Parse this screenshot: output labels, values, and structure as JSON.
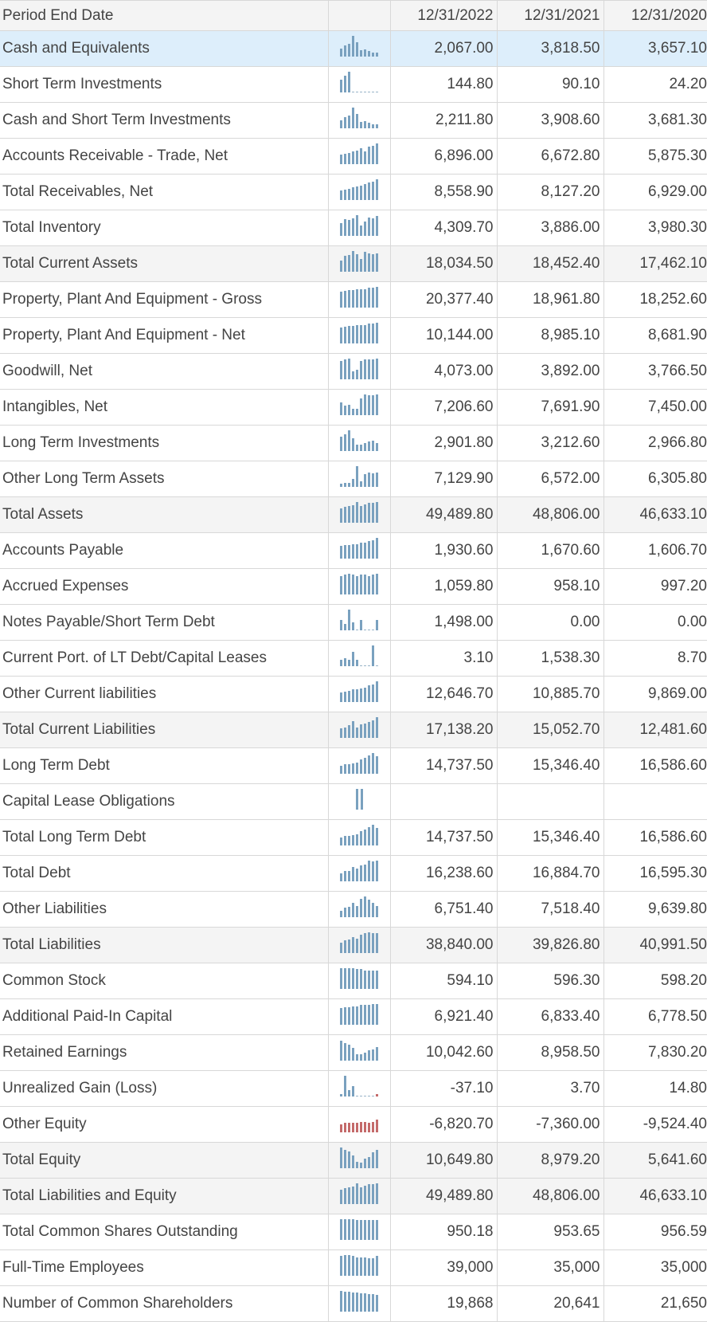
{
  "header": {
    "label": "Period End Date",
    "periods": [
      "12/31/2022",
      "12/31/2021",
      "12/31/2020"
    ]
  },
  "colors": {
    "bar_positive": "#7aa1bf",
    "bar_negative": "#c46a6a",
    "selected_row": "#ddeefb",
    "total_row": "#f4f4f4"
  },
  "rows": [
    {
      "label": "Cash and Equivalents",
      "values": [
        "2,067.00",
        "3,818.50",
        "3,657.10"
      ],
      "spark": [
        40,
        55,
        60,
        100,
        70,
        30,
        35,
        25,
        20,
        20
      ],
      "style": "sel"
    },
    {
      "label": "Short Term Investments",
      "values": [
        "144.80",
        "90.10",
        "24.20"
      ],
      "spark": [
        60,
        80,
        100,
        0,
        0,
        0,
        0,
        0,
        0,
        0
      ],
      "style": ""
    },
    {
      "label": "Cash and Short Term Investments",
      "values": [
        "2,211.80",
        "3,908.60",
        "3,681.30"
      ],
      "spark": [
        40,
        55,
        60,
        100,
        70,
        30,
        35,
        25,
        20,
        20
      ],
      "style": ""
    },
    {
      "label": "Accounts Receivable - Trade, Net",
      "values": [
        "6,896.00",
        "6,672.80",
        "5,875.30"
      ],
      "spark": [
        45,
        50,
        55,
        60,
        65,
        75,
        60,
        85,
        90,
        100
      ],
      "style": ""
    },
    {
      "label": "Total Receivables, Net",
      "values": [
        "8,558.90",
        "8,127.20",
        "6,929.00"
      ],
      "spark": [
        45,
        50,
        55,
        60,
        65,
        70,
        75,
        85,
        90,
        100
      ],
      "style": ""
    },
    {
      "label": "Total Inventory",
      "values": [
        "4,309.70",
        "3,886.00",
        "3,980.30"
      ],
      "spark": [
        60,
        80,
        75,
        85,
        100,
        50,
        70,
        90,
        85,
        95
      ],
      "style": ""
    },
    {
      "label": "Total Current Assets",
      "values": [
        "18,034.50",
        "18,452.40",
        "17,462.10"
      ],
      "spark": [
        55,
        75,
        80,
        100,
        85,
        60,
        95,
        90,
        85,
        90
      ],
      "style": "tot"
    },
    {
      "label": "Property, Plant And Equipment - Gross",
      "values": [
        "20,377.40",
        "18,961.80",
        "18,252.60"
      ],
      "spark": [
        75,
        80,
        85,
        85,
        90,
        90,
        90,
        95,
        95,
        100
      ],
      "style": ""
    },
    {
      "label": "Property, Plant And Equipment - Net",
      "values": [
        "10,144.00",
        "8,985.10",
        "8,681.90"
      ],
      "spark": [
        75,
        80,
        85,
        85,
        90,
        90,
        90,
        95,
        95,
        100
      ],
      "style": ""
    },
    {
      "label": "Goodwill, Net",
      "values": [
        "4,073.00",
        "3,892.00",
        "3,766.50"
      ],
      "spark": [
        90,
        95,
        100,
        40,
        45,
        90,
        95,
        95,
        95,
        100
      ],
      "style": ""
    },
    {
      "label": "Intangibles, Net",
      "values": [
        "7,206.60",
        "7,691.90",
        "7,450.00"
      ],
      "spark": [
        60,
        45,
        50,
        30,
        30,
        80,
        100,
        95,
        95,
        100
      ],
      "style": ""
    },
    {
      "label": "Long Term Investments",
      "values": [
        "2,901.80",
        "3,212.60",
        "2,966.80"
      ],
      "spark": [
        70,
        80,
        100,
        60,
        30,
        30,
        40,
        45,
        50,
        40
      ],
      "style": ""
    },
    {
      "label": "Other Long Term Assets",
      "values": [
        "7,129.90",
        "6,572.00",
        "6,305.80"
      ],
      "spark": [
        15,
        20,
        20,
        40,
        100,
        25,
        60,
        70,
        65,
        70
      ],
      "style": ""
    },
    {
      "label": "Total Assets",
      "values": [
        "49,489.80",
        "48,806.00",
        "46,633.10"
      ],
      "spark": [
        70,
        75,
        80,
        85,
        100,
        80,
        90,
        95,
        95,
        100
      ],
      "style": "tot"
    },
    {
      "label": "Accounts Payable",
      "values": [
        "1,930.60",
        "1,670.60",
        "1,606.70"
      ],
      "spark": [
        60,
        65,
        65,
        70,
        70,
        75,
        75,
        85,
        90,
        100
      ],
      "style": ""
    },
    {
      "label": "Accrued Expenses",
      "values": [
        "1,059.80",
        "958.10",
        "997.20"
      ],
      "spark": [
        90,
        95,
        100,
        95,
        90,
        95,
        95,
        90,
        95,
        100
      ],
      "style": ""
    },
    {
      "label": "Notes Payable/Short Term Debt",
      "values": [
        "1,498.00",
        "0.00",
        "0.00"
      ],
      "spark": [
        50,
        30,
        100,
        40,
        0,
        50,
        0,
        0,
        0,
        50
      ],
      "style": ""
    },
    {
      "label": "Current Port. of LT Debt/Capital Leases",
      "values": [
        "3.10",
        "1,538.30",
        "8.70"
      ],
      "spark": [
        30,
        40,
        30,
        70,
        30,
        0,
        0,
        0,
        100,
        0
      ],
      "style": ""
    },
    {
      "label": "Other Current liabilities",
      "values": [
        "12,646.70",
        "10,885.70",
        "9,869.00"
      ],
      "spark": [
        45,
        50,
        55,
        60,
        60,
        65,
        70,
        80,
        85,
        100
      ],
      "style": ""
    },
    {
      "label": "Total Current Liabilities",
      "values": [
        "17,138.20",
        "15,052.70",
        "12,481.60"
      ],
      "spark": [
        45,
        50,
        60,
        80,
        50,
        65,
        70,
        75,
        85,
        100
      ],
      "style": "tot"
    },
    {
      "label": "Long Term Debt",
      "values": [
        "14,737.50",
        "15,346.40",
        "16,586.60"
      ],
      "spark": [
        40,
        45,
        45,
        50,
        55,
        70,
        75,
        90,
        100,
        85
      ],
      "style": ""
    },
    {
      "label": "Capital Lease Obligations",
      "values": [
        "",
        "",
        ""
      ],
      "spark": [
        100,
        100
      ],
      "style": "capo"
    },
    {
      "label": "Total Long Term Debt",
      "values": [
        "14,737.50",
        "15,346.40",
        "16,586.60"
      ],
      "spark": [
        40,
        45,
        45,
        50,
        55,
        70,
        75,
        90,
        100,
        85
      ],
      "style": ""
    },
    {
      "label": "Total Debt",
      "values": [
        "16,238.60",
        "16,884.70",
        "16,595.30"
      ],
      "spark": [
        40,
        50,
        50,
        70,
        60,
        75,
        80,
        100,
        95,
        100
      ],
      "style": ""
    },
    {
      "label": "Other Liabilities",
      "values": [
        "6,751.40",
        "7,518.40",
        "9,639.80"
      ],
      "spark": [
        30,
        45,
        50,
        70,
        55,
        90,
        100,
        85,
        70,
        55
      ],
      "style": ""
    },
    {
      "label": "Total Liabilities",
      "values": [
        "38,840.00",
        "39,826.80",
        "40,991.50"
      ],
      "spark": [
        50,
        60,
        65,
        75,
        70,
        90,
        95,
        100,
        95,
        95
      ],
      "style": "tot"
    },
    {
      "label": "Common Stock",
      "values": [
        "594.10",
        "596.30",
        "598.20"
      ],
      "spark": [
        100,
        100,
        100,
        100,
        95,
        95,
        90,
        90,
        90,
        90
      ],
      "style": ""
    },
    {
      "label": "Additional Paid-In Capital",
      "values": [
        "6,921.40",
        "6,833.40",
        "6,778.50"
      ],
      "spark": [
        80,
        85,
        85,
        90,
        90,
        95,
        95,
        95,
        100,
        100
      ],
      "style": ""
    },
    {
      "label": "Retained Earnings",
      "values": [
        "10,042.60",
        "8,958.50",
        "7,830.20"
      ],
      "spark": [
        95,
        85,
        75,
        60,
        30,
        30,
        40,
        50,
        55,
        65
      ],
      "style": ""
    },
    {
      "label": "Unrealized Gain (Loss)",
      "values": [
        "-37.10",
        "3.70",
        "14.80"
      ],
      "spark": [
        10,
        100,
        30,
        50,
        0,
        0,
        0,
        0,
        0,
        -10
      ],
      "style": ""
    },
    {
      "label": "Other Equity",
      "values": [
        "-6,820.70",
        "-7,360.00",
        "-9,524.40"
      ],
      "spark": [
        -40,
        -45,
        -45,
        -45,
        -45,
        -50,
        -50,
        -45,
        -50,
        -60
      ],
      "style": ""
    },
    {
      "label": "Total Equity",
      "values": [
        "10,649.80",
        "8,979.20",
        "5,641.60"
      ],
      "spark": [
        100,
        90,
        80,
        60,
        30,
        25,
        45,
        55,
        75,
        90
      ],
      "style": "tot"
    },
    {
      "label": "Total Liabilities and Equity",
      "values": [
        "49,489.80",
        "48,806.00",
        "46,633.10"
      ],
      "spark": [
        70,
        75,
        80,
        85,
        100,
        80,
        90,
        95,
        95,
        100
      ],
      "style": "tot"
    },
    {
      "label": "Total Common Shares Outstanding",
      "values": [
        "950.18",
        "953.65",
        "956.59"
      ],
      "spark": [
        100,
        100,
        100,
        100,
        98,
        98,
        97,
        97,
        96,
        96
      ],
      "style": ""
    },
    {
      "label": "Full-Time Employees",
      "values": [
        "39,000",
        "35,000",
        "35,000"
      ],
      "spark": [
        95,
        100,
        100,
        95,
        90,
        90,
        90,
        85,
        85,
        95
      ],
      "style": ""
    },
    {
      "label": "Number of Common Shareholders",
      "values": [
        "19,868",
        "20,641",
        "21,650"
      ],
      "spark": [
        100,
        98,
        96,
        94,
        92,
        90,
        88,
        86,
        84,
        82
      ],
      "style": ""
    }
  ]
}
